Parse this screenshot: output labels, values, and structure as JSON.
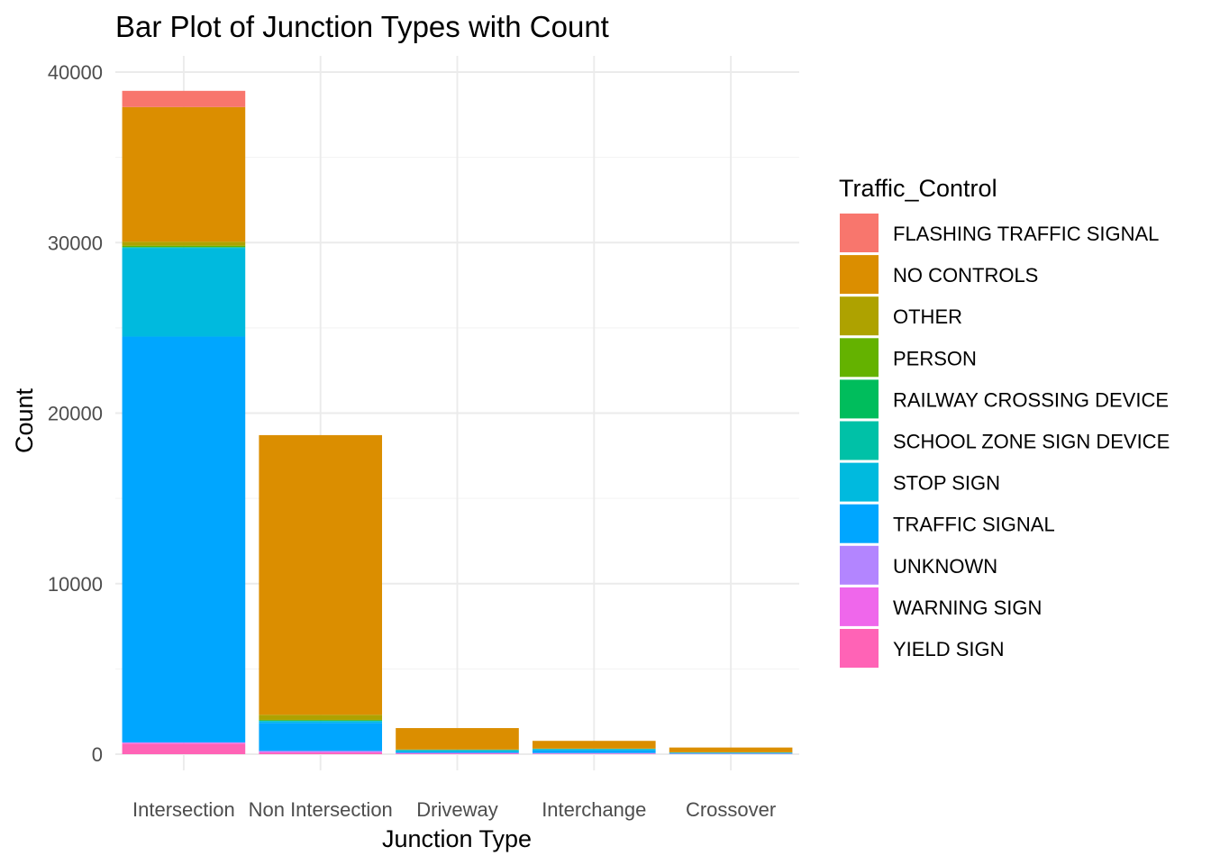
{
  "chart_data": {
    "type": "bar",
    "stacked": true,
    "title": "Bar Plot of Junction Types with Count",
    "xlabel": "Junction Type",
    "ylabel": "Count",
    "ylim": [
      0,
      40000
    ],
    "yticks": [
      0,
      10000,
      20000,
      30000,
      40000
    ],
    "grid": true,
    "legend_position": "right",
    "legend_title": "Traffic_Control",
    "categories": [
      "Intersection",
      "Non Intersection",
      "Driveway",
      "Interchange",
      "Crossover"
    ],
    "series": [
      {
        "name": "FLASHING TRAFFIC SIGNAL",
        "color": "#F8766D",
        "values": [
          950,
          0,
          0,
          0,
          0
        ]
      },
      {
        "name": "NO CONTROLS",
        "color": "#DB8E00",
        "values": [
          7900,
          16400,
          1250,
          450,
          280
        ]
      },
      {
        "name": "OTHER",
        "color": "#AEA200",
        "values": [
          230,
          300,
          30,
          20,
          10
        ]
      },
      {
        "name": "PERSON",
        "color": "#64B200",
        "values": [
          80,
          30,
          0,
          0,
          0
        ]
      },
      {
        "name": "RAILWAY CROSSING DEVICE",
        "color": "#00BD5C",
        "values": [
          10,
          20,
          0,
          0,
          0
        ]
      },
      {
        "name": "SCHOOL ZONE SIGN DEVICE",
        "color": "#00C1A7",
        "values": [
          40,
          20,
          0,
          0,
          0
        ]
      },
      {
        "name": "STOP SIGN",
        "color": "#00BADE",
        "values": [
          5200,
          100,
          120,
          80,
          40
        ]
      },
      {
        "name": "TRAFFIC SIGNAL",
        "color": "#00A6FF",
        "values": [
          23800,
          1650,
          50,
          160,
          30
        ]
      },
      {
        "name": "UNKNOWN",
        "color": "#B385FF",
        "values": [
          20,
          50,
          30,
          30,
          10
        ]
      },
      {
        "name": "WARNING SIGN",
        "color": "#EF67EB",
        "values": [
          50,
          60,
          20,
          20,
          10
        ]
      },
      {
        "name": "YIELD SIGN",
        "color": "#FF63B6",
        "values": [
          620,
          80,
          30,
          20,
          10
        ]
      }
    ]
  }
}
